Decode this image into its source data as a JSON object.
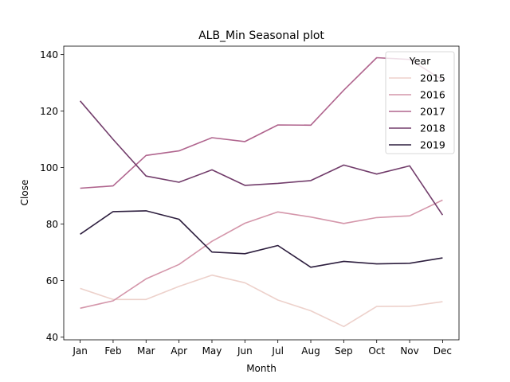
{
  "chart_data": {
    "type": "line",
    "title": "ALB_Min Seasonal plot",
    "xlabel": "Month",
    "ylabel": "Close",
    "categories": [
      "Jan",
      "Feb",
      "Mar",
      "Apr",
      "May",
      "Jun",
      "Jul",
      "Aug",
      "Sep",
      "Oct",
      "Nov",
      "Dec"
    ],
    "ylim": [
      39,
      143
    ],
    "yticks": [
      40,
      60,
      80,
      100,
      120,
      140
    ],
    "grid": false,
    "legend": {
      "title": "Year",
      "placement": "top-right"
    },
    "series": [
      {
        "name": "2015",
        "color": "#edd1cb",
        "values": [
          57.2,
          53.3,
          53.3,
          57.9,
          61.9,
          59.2,
          53.1,
          49.3,
          43.7,
          50.8,
          50.9,
          52.5
        ]
      },
      {
        "name": "2016",
        "color": "#d496aa",
        "values": [
          50.2,
          52.8,
          60.6,
          65.7,
          73.9,
          80.3,
          84.3,
          82.5,
          80.2,
          82.3,
          82.9,
          88.5
        ]
      },
      {
        "name": "2017",
        "color": "#b0658e",
        "values": [
          92.7,
          93.5,
          104.3,
          105.9,
          110.6,
          109.2,
          115.1,
          115.0,
          127.4,
          138.9,
          138.3,
          131.0
        ]
      },
      {
        "name": "2018",
        "color": "#723d6b",
        "values": [
          123.6,
          110.0,
          97.0,
          94.8,
          99.2,
          93.7,
          94.4,
          95.4,
          100.9,
          97.7,
          100.6,
          83.2
        ]
      },
      {
        "name": "2019",
        "color": "#2d1e3e",
        "values": [
          76.4,
          84.4,
          84.7,
          81.7,
          70.1,
          69.5,
          72.4,
          64.7,
          66.8,
          65.9,
          66.1,
          68.0
        ]
      }
    ]
  }
}
